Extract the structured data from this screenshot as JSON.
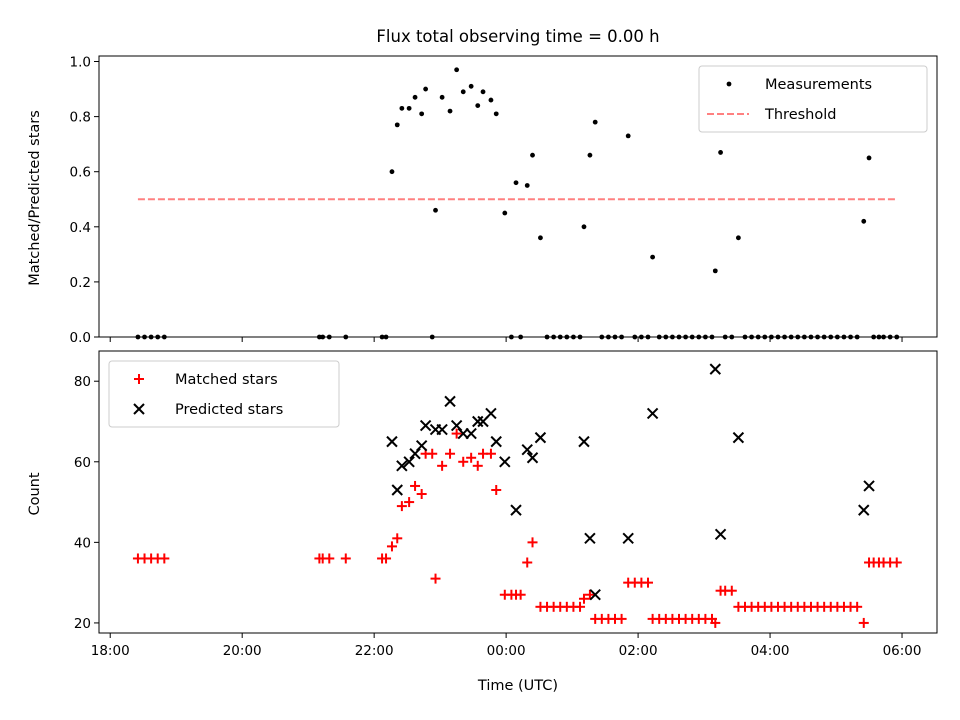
{
  "figure_title": "Flux total observing time = 0.00 h",
  "chart_data": [
    {
      "type": "scatter",
      "ylabel": "Matched/Predicted stars",
      "ylim": [
        0,
        1.02
      ],
      "yticks": [
        0.0,
        0.2,
        0.4,
        0.6,
        0.8,
        1.0
      ],
      "ytick_labels": [
        "0.0",
        "0.2",
        "0.4",
        "0.6",
        "0.8",
        "1.0"
      ],
      "xlim_hours": [
        17.83,
        30.53
      ],
      "xticks_hours": [
        18,
        20,
        22,
        24,
        26,
        28,
        30
      ],
      "legend": {
        "placement": "upper right",
        "entries": [
          {
            "label": "Measurements",
            "color": "#000000",
            "marker": "dot"
          },
          {
            "label": "Threshold",
            "color": "#ff8080",
            "marker": "dashed-line"
          }
        ]
      },
      "threshold": {
        "y": 0.5,
        "x_range": [
          18.42,
          29.93
        ],
        "color": "#ff8080"
      },
      "series": [
        {
          "name": "Measurements",
          "color": "#000000",
          "points": [
            [
              18.42,
              0
            ],
            [
              18.52,
              0
            ],
            [
              18.62,
              0
            ],
            [
              18.72,
              0
            ],
            [
              18.82,
              0
            ],
            [
              21.17,
              0
            ],
            [
              21.22,
              0
            ],
            [
              21.32,
              0
            ],
            [
              21.57,
              0
            ],
            [
              22.12,
              0
            ],
            [
              22.18,
              0
            ],
            [
              22.27,
              0.6
            ],
            [
              22.35,
              0.77
            ],
            [
              22.42,
              0.83
            ],
            [
              22.53,
              0.83
            ],
            [
              22.62,
              0.87
            ],
            [
              22.72,
              0.81
            ],
            [
              22.78,
              0.9
            ],
            [
              22.88,
              0
            ],
            [
              22.93,
              0.46
            ],
            [
              23.03,
              0.87
            ],
            [
              23.15,
              0.82
            ],
            [
              23.25,
              0.97
            ],
            [
              23.35,
              0.89
            ],
            [
              23.47,
              0.91
            ],
            [
              23.57,
              0.84
            ],
            [
              23.65,
              0.89
            ],
            [
              23.77,
              0.86
            ],
            [
              23.85,
              0.81
            ],
            [
              23.98,
              0.45
            ],
            [
              24.08,
              0
            ],
            [
              24.15,
              0.56
            ],
            [
              24.22,
              0
            ],
            [
              24.32,
              0.55
            ],
            [
              24.4,
              0.66
            ],
            [
              24.52,
              0.36
            ],
            [
              24.62,
              0
            ],
            [
              24.72,
              0
            ],
            [
              24.82,
              0
            ],
            [
              24.92,
              0
            ],
            [
              25.02,
              0
            ],
            [
              25.12,
              0
            ],
            [
              25.18,
              0.4
            ],
            [
              25.27,
              0.66
            ],
            [
              25.35,
              0.78
            ],
            [
              25.45,
              0
            ],
            [
              25.55,
              0
            ],
            [
              25.65,
              0
            ],
            [
              25.75,
              0
            ],
            [
              25.85,
              0.73
            ],
            [
              25.95,
              0
            ],
            [
              26.05,
              0
            ],
            [
              26.15,
              0
            ],
            [
              26.22,
              0.29
            ],
            [
              26.32,
              0
            ],
            [
              26.42,
              0
            ],
            [
              26.52,
              0
            ],
            [
              26.62,
              0
            ],
            [
              26.72,
              0
            ],
            [
              26.82,
              0
            ],
            [
              26.92,
              0
            ],
            [
              27.02,
              0
            ],
            [
              27.12,
              0
            ],
            [
              27.17,
              0.24
            ],
            [
              27.25,
              0.67
            ],
            [
              27.32,
              0
            ],
            [
              27.42,
              0
            ],
            [
              27.52,
              0.36
            ],
            [
              27.62,
              0
            ],
            [
              27.72,
              0
            ],
            [
              27.82,
              0
            ],
            [
              27.92,
              0
            ],
            [
              28.02,
              0
            ],
            [
              28.12,
              0
            ],
            [
              28.22,
              0
            ],
            [
              28.32,
              0
            ],
            [
              28.42,
              0
            ],
            [
              28.52,
              0
            ],
            [
              28.62,
              0
            ],
            [
              28.72,
              0
            ],
            [
              28.82,
              0
            ],
            [
              28.92,
              0
            ],
            [
              29.02,
              0
            ],
            [
              29.12,
              0
            ],
            [
              29.22,
              0
            ],
            [
              29.32,
              0
            ],
            [
              29.42,
              0.42
            ],
            [
              29.5,
              0.65
            ],
            [
              29.57,
              0
            ],
            [
              29.65,
              0
            ],
            [
              29.72,
              0
            ],
            [
              29.82,
              0
            ],
            [
              29.92,
              0
            ]
          ]
        }
      ]
    },
    {
      "type": "scatter",
      "ylabel": "Count",
      "xlabel": "Time (UTC)",
      "ylim": [
        17.5,
        87.5
      ],
      "yticks": [
        20,
        40,
        60,
        80
      ],
      "ytick_labels": [
        "20",
        "40",
        "60",
        "80"
      ],
      "xlim_hours": [
        17.83,
        30.53
      ],
      "xticks_hours": [
        18,
        20,
        22,
        24,
        26,
        28,
        30
      ],
      "xtick_labels": [
        "18:00",
        "20:00",
        "22:00",
        "00:00",
        "02:00",
        "04:00",
        "06:00"
      ],
      "legend": {
        "placement": "upper left",
        "entries": [
          {
            "label": "Matched stars",
            "color": "#ff0000",
            "marker": "plus"
          },
          {
            "label": "Predicted stars",
            "color": "#000000",
            "marker": "x"
          }
        ]
      },
      "series": [
        {
          "name": "Matched stars",
          "color": "#ff0000",
          "marker": "plus",
          "points": [
            [
              18.42,
              36
            ],
            [
              18.52,
              36
            ],
            [
              18.62,
              36
            ],
            [
              18.72,
              36
            ],
            [
              18.82,
              36
            ],
            [
              21.17,
              36
            ],
            [
              21.22,
              36
            ],
            [
              21.32,
              36
            ],
            [
              21.57,
              36
            ],
            [
              22.12,
              36
            ],
            [
              22.18,
              36
            ],
            [
              22.27,
              39
            ],
            [
              22.35,
              41
            ],
            [
              22.42,
              49
            ],
            [
              22.53,
              50
            ],
            [
              22.62,
              54
            ],
            [
              22.72,
              52
            ],
            [
              22.78,
              62
            ],
            [
              22.88,
              62
            ],
            [
              22.93,
              31
            ],
            [
              23.03,
              59
            ],
            [
              23.15,
              62
            ],
            [
              23.25,
              67
            ],
            [
              23.35,
              60
            ],
            [
              23.47,
              61
            ],
            [
              23.57,
              59
            ],
            [
              23.65,
              62
            ],
            [
              23.77,
              62
            ],
            [
              23.85,
              53
            ],
            [
              23.98,
              27
            ],
            [
              24.08,
              27
            ],
            [
              24.15,
              27
            ],
            [
              24.22,
              27
            ],
            [
              24.32,
              35
            ],
            [
              24.4,
              40
            ],
            [
              24.52,
              24
            ],
            [
              24.62,
              24
            ],
            [
              24.72,
              24
            ],
            [
              24.82,
              24
            ],
            [
              24.92,
              24
            ],
            [
              25.02,
              24
            ],
            [
              25.12,
              24
            ],
            [
              25.18,
              26
            ],
            [
              25.27,
              27
            ],
            [
              25.35,
              21
            ],
            [
              25.45,
              21
            ],
            [
              25.55,
              21
            ],
            [
              25.65,
              21
            ],
            [
              25.75,
              21
            ],
            [
              25.85,
              30
            ],
            [
              25.95,
              30
            ],
            [
              26.05,
              30
            ],
            [
              26.15,
              30
            ],
            [
              26.22,
              21
            ],
            [
              26.32,
              21
            ],
            [
              26.42,
              21
            ],
            [
              26.52,
              21
            ],
            [
              26.62,
              21
            ],
            [
              26.72,
              21
            ],
            [
              26.82,
              21
            ],
            [
              26.92,
              21
            ],
            [
              27.02,
              21
            ],
            [
              27.12,
              21
            ],
            [
              27.17,
              20
            ],
            [
              27.25,
              28
            ],
            [
              27.32,
              28
            ],
            [
              27.42,
              28
            ],
            [
              27.52,
              24
            ],
            [
              27.62,
              24
            ],
            [
              27.72,
              24
            ],
            [
              27.82,
              24
            ],
            [
              27.92,
              24
            ],
            [
              28.02,
              24
            ],
            [
              28.12,
              24
            ],
            [
              28.22,
              24
            ],
            [
              28.32,
              24
            ],
            [
              28.42,
              24
            ],
            [
              28.52,
              24
            ],
            [
              28.62,
              24
            ],
            [
              28.72,
              24
            ],
            [
              28.82,
              24
            ],
            [
              28.92,
              24
            ],
            [
              29.02,
              24
            ],
            [
              29.12,
              24
            ],
            [
              29.22,
              24
            ],
            [
              29.32,
              24
            ],
            [
              29.42,
              20
            ],
            [
              29.5,
              35
            ],
            [
              29.57,
              35
            ],
            [
              29.65,
              35
            ],
            [
              29.72,
              35
            ],
            [
              29.82,
              35
            ],
            [
              29.92,
              35
            ]
          ]
        },
        {
          "name": "Predicted stars",
          "color": "#000000",
          "marker": "x",
          "points": [
            [
              22.27,
              65
            ],
            [
              22.35,
              53
            ],
            [
              22.42,
              59
            ],
            [
              22.53,
              60
            ],
            [
              22.62,
              62
            ],
            [
              22.72,
              64
            ],
            [
              22.78,
              69
            ],
            [
              22.93,
              68
            ],
            [
              23.03,
              68
            ],
            [
              23.15,
              75
            ],
            [
              23.25,
              69
            ],
            [
              23.35,
              67
            ],
            [
              23.47,
              67
            ],
            [
              23.57,
              70
            ],
            [
              23.65,
              70
            ],
            [
              23.77,
              72
            ],
            [
              23.85,
              65
            ],
            [
              23.98,
              60
            ],
            [
              24.32,
              63
            ],
            [
              24.4,
              61
            ],
            [
              24.52,
              66
            ],
            [
              24.15,
              48
            ],
            [
              25.18,
              65
            ],
            [
              25.27,
              41
            ],
            [
              25.35,
              27
            ],
            [
              25.85,
              41
            ],
            [
              26.22,
              72
            ],
            [
              27.17,
              83
            ],
            [
              27.25,
              42
            ],
            [
              27.52,
              66
            ],
            [
              29.42,
              48
            ],
            [
              29.5,
              54
            ]
          ]
        }
      ]
    }
  ]
}
